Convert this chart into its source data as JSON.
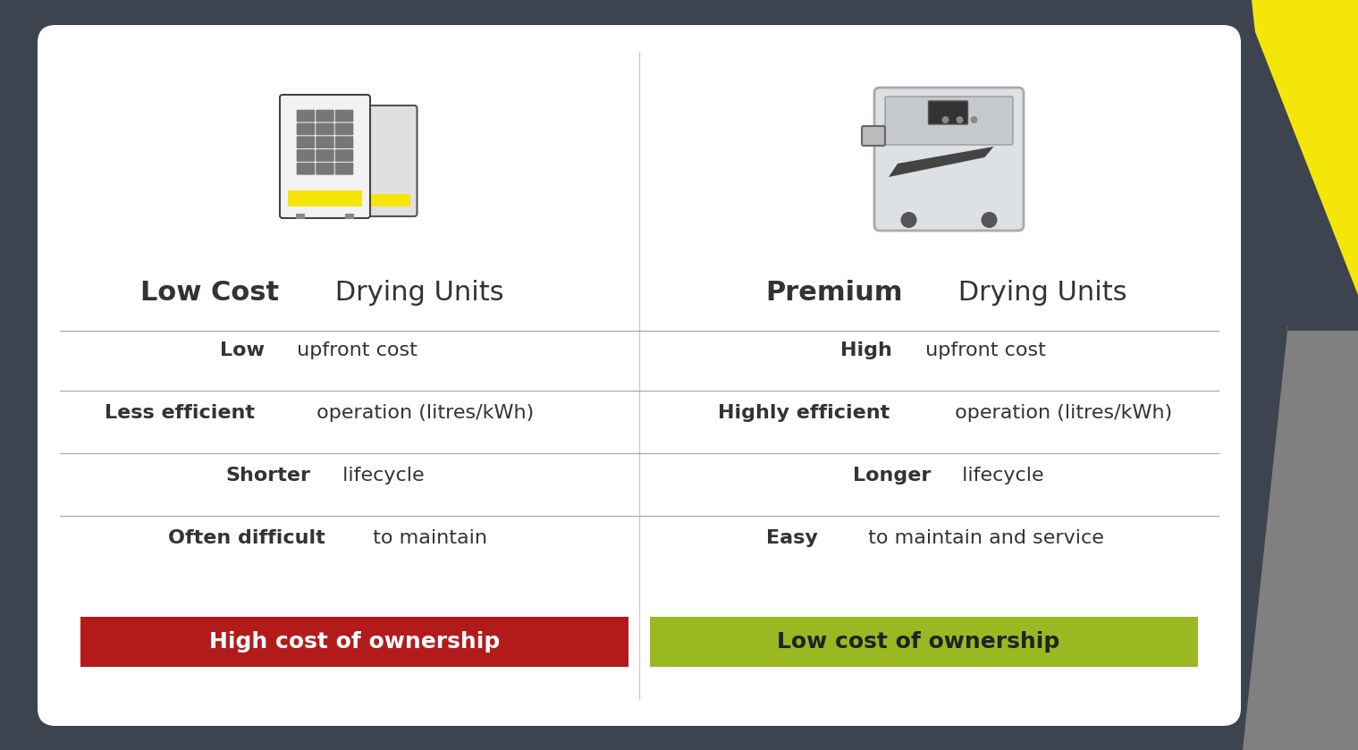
{
  "bg_outer": "#3d4450",
  "bg_white": "#ffffff",
  "accent_yellow": "#f5e60a",
  "accent_green": "#9ab822",
  "accent_red": "#b31b1b",
  "accent_gray": "#808080",
  "left_title_bold": "Low Cost",
  "left_title_normal": " Drying Units",
  "right_title_bold": "Premium",
  "right_title_normal": " Drying Units",
  "rows": [
    {
      "left_bold": "Low",
      "left_normal": " upfront cost",
      "right_bold": "High",
      "right_normal": " upfront cost"
    },
    {
      "left_bold": "Less efficient",
      "left_normal": " operation (litres/kWh)",
      "right_bold": "Highly efficient",
      "right_normal": " operation (litres/kWh)"
    },
    {
      "left_bold": "Shorter",
      "left_normal": " lifecycle",
      "right_bold": "Longer",
      "right_normal": " lifecycle"
    },
    {
      "left_bold": "Often difficult",
      "left_normal": " to maintain",
      "right_bold": "Easy",
      "right_normal": " to maintain and service"
    }
  ],
  "left_cta": "High cost of ownership",
  "right_cta": "Low cost of ownership",
  "title_fontsize": 22,
  "row_fontsize": 16,
  "cta_fontsize": 18
}
